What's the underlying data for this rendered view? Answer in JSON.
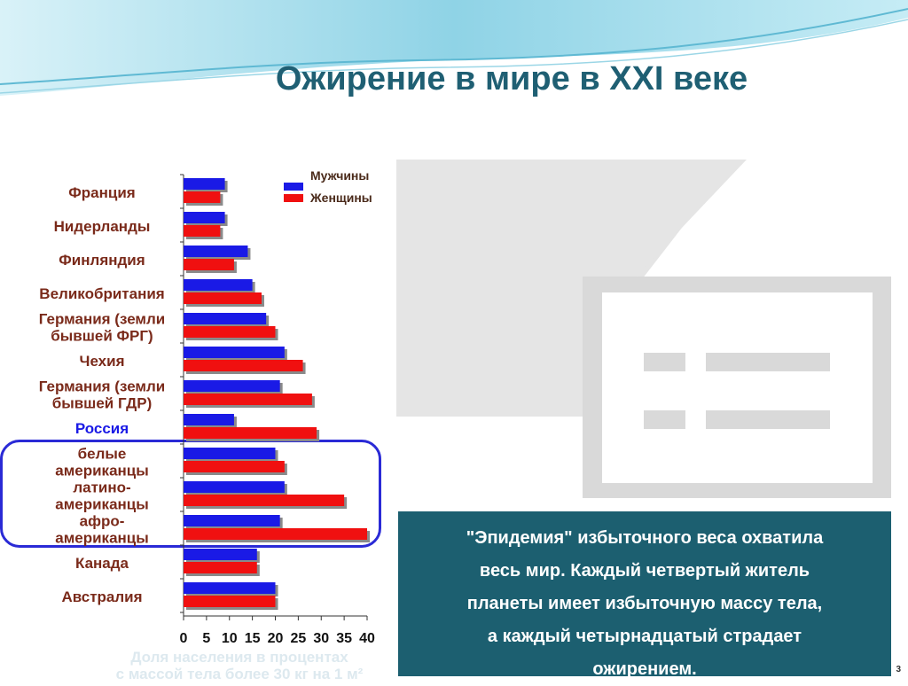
{
  "title": "Ожирение в мире в XXI веке",
  "callout_lines": [
    "\"Эпидемия\" избыточного веса охватила",
    "весь мир. Каждый четвертый житель",
    "планеты имеет избыточную массу тела,",
    "а каждый четырнадцатый страдает",
    "ожирением."
  ],
  "slide_number": "3",
  "colors": {
    "men": "#1a1ae6",
    "women": "#f01010",
    "title": "#1f5f73",
    "highlight": "#2a2ad6",
    "callout_bg": "#1c5f70",
    "russia_label": "#1a1ae6",
    "label": "#7a2a1a"
  },
  "chart_data": {
    "type": "bar",
    "orientation": "horizontal",
    "categories": [
      [
        "Франция"
      ],
      [
        "Нидерланды"
      ],
      [
        "Финляндия"
      ],
      [
        "Великобритания"
      ],
      [
        "Германия (земли",
        "бывшей ФРГ)"
      ],
      [
        "Чехия"
      ],
      [
        "Германия (земли",
        "бывшей ГДР)"
      ],
      [
        "Россия"
      ],
      [
        "белые",
        "американцы"
      ],
      [
        "латино-",
        "американцы"
      ],
      [
        "афро-",
        "американцы"
      ],
      [
        "Канада"
      ],
      [
        "Австралия"
      ]
    ],
    "series": [
      {
        "name": "Мужчины",
        "values": [
          9,
          9,
          14,
          15,
          18,
          22,
          21,
          11,
          20,
          22,
          21,
          16,
          20
        ]
      },
      {
        "name": "Женщины",
        "values": [
          8,
          8,
          11,
          17,
          20,
          26,
          28,
          29,
          22,
          35,
          40,
          16,
          20
        ]
      }
    ],
    "xticks": [
      "0",
      "5",
      "10",
      "15",
      "20",
      "25",
      "30",
      "35",
      "40"
    ],
    "xlim": [
      0,
      40
    ],
    "xlabel": [
      "Доля населения в процентах",
      "с массой тела более 30 кг на 1 м²"
    ],
    "legend": "top-right",
    "highlighted_category": "Россия",
    "highlighted_group": [
      "белые американцы",
      "латино-американцы",
      "афро-американцы"
    ]
  }
}
